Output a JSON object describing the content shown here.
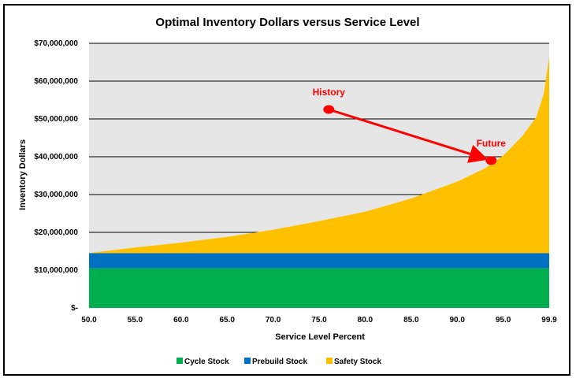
{
  "chart_data": {
    "type": "area",
    "title": "Optimal Inventory Dollars versus Service Level",
    "xlabel": "Service Level Percent",
    "ylabel": "Inventory Dollars",
    "xlim": [
      50,
      99.9
    ],
    "ylim": [
      0,
      70000000
    ],
    "x_ticks": [
      "50.0",
      "55.0",
      "60.0",
      "65.0",
      "70.0",
      "75.0",
      "80.0",
      "85.0",
      "90.0",
      "95.0",
      "99.9"
    ],
    "y_ticks": [
      "$-",
      "$10,000,000",
      "$20,000,000",
      "$30,000,000",
      "$40,000,000",
      "$50,000,000",
      "$60,000,000",
      "$70,000,000"
    ],
    "stacked": true,
    "grid": "horizontal",
    "legend_position": "bottom",
    "x": [
      50,
      55,
      60,
      65,
      70,
      75,
      80,
      85,
      90,
      93,
      95,
      97,
      98.5,
      99.3,
      99.9
    ],
    "series": [
      {
        "name": "Cycle Stock",
        "color": "#00b050",
        "values": [
          10500000,
          10500000,
          10500000,
          10500000,
          10500000,
          10500000,
          10500000,
          10500000,
          10500000,
          10500000,
          10500000,
          10500000,
          10500000,
          10500000,
          10500000
        ]
      },
      {
        "name": "Prebuild Stock",
        "color": "#0070c0",
        "values": [
          4000000,
          4000000,
          4000000,
          4000000,
          4000000,
          4000000,
          4000000,
          4000000,
          4000000,
          4000000,
          4000000,
          4000000,
          4000000,
          4000000,
          4000000
        ]
      },
      {
        "name": "Safety Stock",
        "color": "#ffc000",
        "values": [
          0,
          1500000,
          2800000,
          4300000,
          6200000,
          8500000,
          11000000,
          14500000,
          19000000,
          22500000,
          26000000,
          31000000,
          36000000,
          42000000,
          52000000
        ]
      }
    ],
    "annotations": [
      {
        "label": "History",
        "x": 76,
        "y": 52500000,
        "color": "#ff0000"
      },
      {
        "label": "Future",
        "x": 93.6,
        "y": 39000000,
        "color": "#ff0000"
      }
    ],
    "arrow": {
      "from": "History",
      "to": "Future",
      "color": "#ff0000"
    }
  }
}
